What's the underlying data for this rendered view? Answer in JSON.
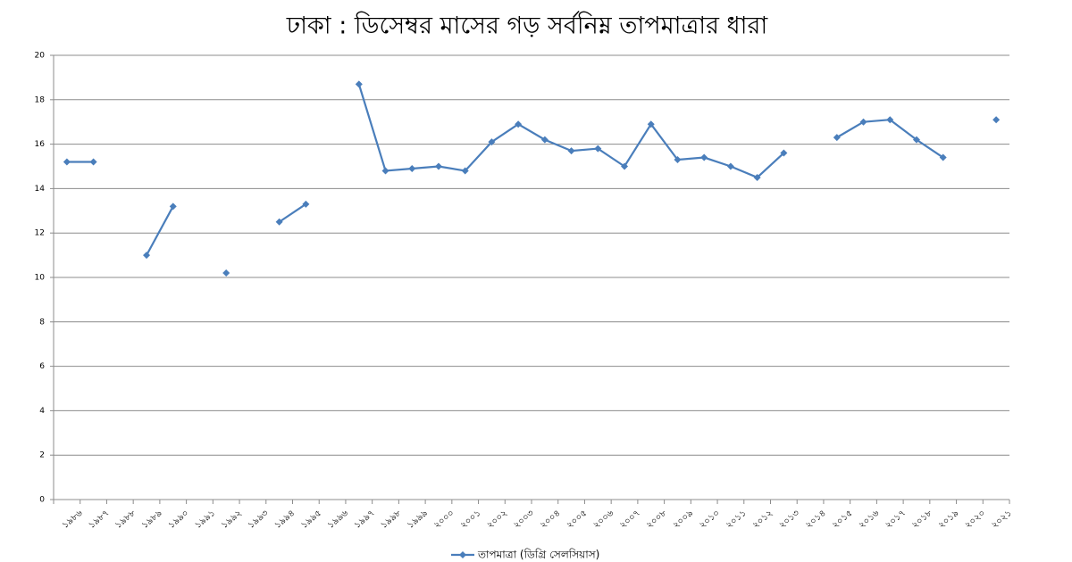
{
  "chart_data": {
    "type": "line",
    "title": "ঢাকা : ডিসেম্বর মাসের গড় সর্বনিম্ন তাপমাত্রার ধারা",
    "categories": [
      "১৯৮৬",
      "১৯৮৭",
      "১৯৮৮",
      "১৯৮৯",
      "১৯৯০",
      "১৯৯১",
      "১৯৯২",
      "১৯৯৩",
      "১৯৯৪",
      "১৯৯৫",
      "১৯৯৬",
      "১৯৯৭",
      "১৯৯৮",
      "১৯৯৯",
      "২০০০",
      "২০০১",
      "২০০২",
      "২০০৩",
      "২০০৪",
      "২০০৫",
      "২০০৬",
      "২০০৭",
      "২০০৮",
      "২০০৯",
      "২০১০",
      "২০১১",
      "২০১২",
      "২০১৩",
      "২০১৪",
      "২০১৫",
      "২০১৬",
      "২০১৭",
      "২০১৮",
      "২০১৯",
      "২০২০",
      "২০২১"
    ],
    "series": [
      {
        "name": "তাপমাত্রা (ডিগ্রি সেলসিয়াস)",
        "color": "#4a7ebb",
        "values": [
          15.2,
          15.2,
          null,
          11,
          13.2,
          null,
          10.2,
          null,
          12.5,
          13.3,
          null,
          18.7,
          14.8,
          14.9,
          15.0,
          14.8,
          16.1,
          16.9,
          16.2,
          15.7,
          15.8,
          15.0,
          16.9,
          15.3,
          15.4,
          15.0,
          14.5,
          15.6,
          null,
          16.3,
          17.0,
          17.1,
          16.2,
          15.4,
          null,
          17.1
        ]
      }
    ],
    "ylim": [
      0,
      20
    ],
    "yticks": [
      0,
      2,
      4,
      6,
      8,
      10,
      12,
      14,
      16,
      18,
      20
    ],
    "grid": true,
    "legend": "bottom"
  }
}
